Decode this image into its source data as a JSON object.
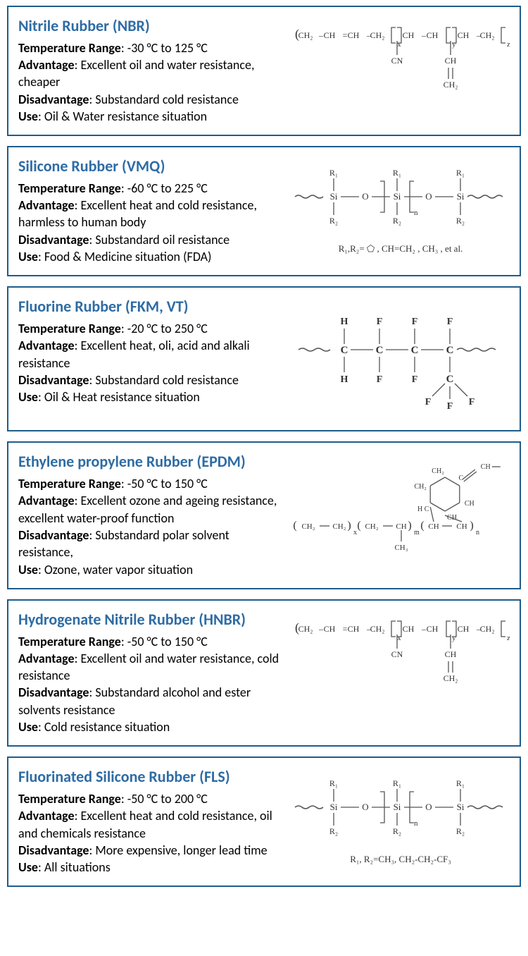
{
  "colors": {
    "border": "#1f5c8b",
    "title": "#2e6ca4",
    "text": "#000000",
    "diagram_stroke": "#555555",
    "diagram_text": "#333333"
  },
  "labels": {
    "temp": "Temperature Range",
    "adv": "Advantage",
    "dis": "Disadvantage",
    "use": "Use"
  },
  "materials": [
    {
      "title": "Nitrile Rubber (NBR)",
      "temp": ": -30 °C to 125 °C",
      "adv": ": Excellent oil and water resistance, cheaper",
      "dis": ": Substandard cold resistance",
      "use": ": Oil & Water resistance situation",
      "diagram": "nbr"
    },
    {
      "title": "Silicone Rubber (VMQ)",
      "temp": ": -60 °C to 225 °C",
      "adv": ": Excellent heat and cold resistance, harmless to human body",
      "dis": ": Substandard oil  resistance",
      "use": ": Food & Medicine  situation (FDA)",
      "diagram": "vmq",
      "subnote": "R₁,R₂= ⬠ , CH=CH₂ , CH₃ , et al."
    },
    {
      "title": "Fluorine Rubber (FKM, VT)",
      "temp": ": -20 °C to 250 °C",
      "adv": ": Excellent heat, oli, acid and alkali resistance",
      "dis": ": Substandard cold resistance",
      "use": ": Oil & Heat resistance situation",
      "diagram": "fkm"
    },
    {
      "title": "Ethylene  propylene  Rubber (EPDM)",
      "temp": ": -50 °C to 150 °C",
      "adv": ": Excellent ozone and ageing resistance, excellent water-proof function",
      "dis": ": Substandard polar solvent resistance,",
      "use": ": Ozone, water vapor situation",
      "diagram": "epdm"
    },
    {
      "title": "Hydrogenate  Nitrile Rubber (HNBR)",
      "temp": ": -50 °C to 150 °C",
      "adv": ": Excellent oil and water resistance, cold resistance",
      "dis": ": Substandard alcohol and ester solvents resistance",
      "use": ": Cold resistance situation",
      "diagram": "nbr"
    },
    {
      "title": "Fluorinated  Silicone  Rubber (FLS)",
      "temp": ": -50 °C to 200 °C",
      "adv": ": Excellent heat and cold resistance, oil and chemicals resistance",
      "dis": ": More expensive, longer lead time",
      "use": ": All situations",
      "diagram": "vmq",
      "subnote": "R₁,  R₂=CH₃,  CH₂-CH₂-CF₃"
    }
  ]
}
